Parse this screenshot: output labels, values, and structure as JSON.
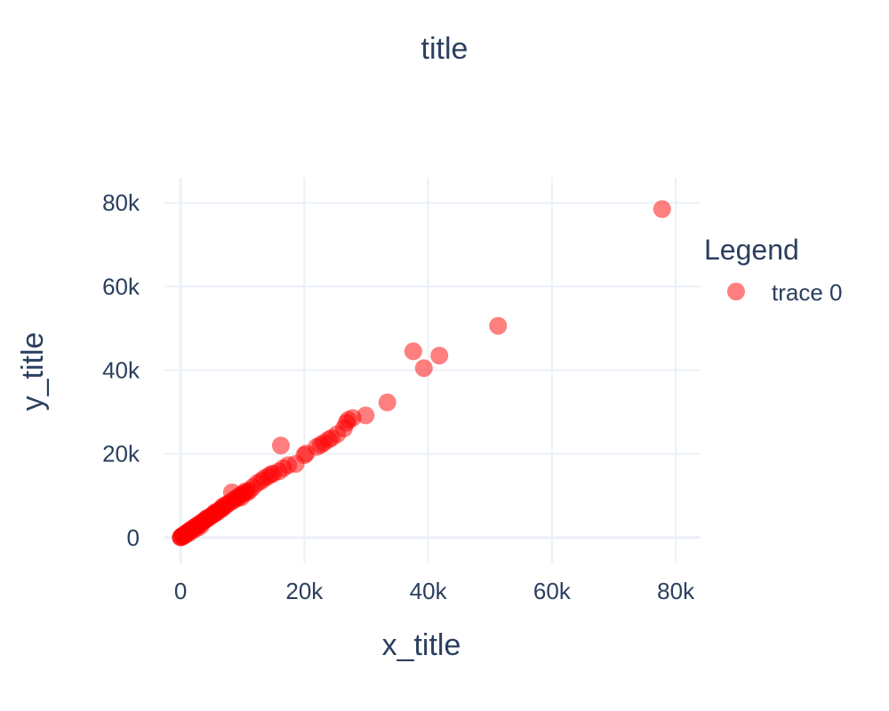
{
  "chart_data": {
    "type": "scatter",
    "title": "title",
    "xlabel": "x_title",
    "ylabel": "y_title",
    "xlim": [
      -2600,
      84000
    ],
    "ylim": [
      -6200,
      86000
    ],
    "xticks": [
      0,
      20000,
      40000,
      60000,
      80000
    ],
    "xtick_labels": [
      "0",
      "20k",
      "40k",
      "60k",
      "80k"
    ],
    "yticks": [
      0,
      20000,
      40000,
      60000,
      80000
    ],
    "ytick_labels": [
      "0",
      "20k",
      "40k",
      "60k",
      "80k"
    ],
    "grid": true,
    "legend": {
      "title": "Legend",
      "placement": "right"
    },
    "marker_color": "#ff0000",
    "marker_opacity": 0.5,
    "grid_color": "#ebf0f8",
    "text_color": "#2a3f5f",
    "series": [
      {
        "name": "trace 0",
        "points": [
          [
            77800,
            78500
          ],
          [
            51300,
            50600
          ],
          [
            41800,
            43500
          ],
          [
            39300,
            40500
          ],
          [
            37600,
            44500
          ],
          [
            33400,
            32300
          ],
          [
            29900,
            29200
          ],
          [
            27800,
            28600
          ],
          [
            27100,
            28100
          ],
          [
            26800,
            27400
          ],
          [
            26400,
            26100
          ],
          [
            25300,
            24700
          ],
          [
            23900,
            23400
          ],
          [
            23100,
            22600
          ],
          [
            22600,
            22100
          ],
          [
            22000,
            21700
          ],
          [
            20300,
            20100
          ],
          [
            20000,
            19700
          ],
          [
            18600,
            17600
          ],
          [
            17400,
            17300
          ],
          [
            16600,
            16600
          ],
          [
            16200,
            22000
          ],
          [
            15900,
            15800
          ],
          [
            14600,
            15100
          ],
          [
            14100,
            14600
          ],
          [
            13500,
            14100
          ],
          [
            13000,
            13500
          ],
          [
            11700,
            12100
          ],
          [
            11200,
            11300
          ],
          [
            10800,
            10800
          ],
          [
            10300,
            10600
          ],
          [
            9900,
            10300
          ],
          [
            9500,
            10000
          ],
          [
            9200,
            9400
          ],
          [
            8800,
            9300
          ],
          [
            8500,
            8800
          ],
          [
            8300,
            10800
          ],
          [
            8000,
            8400
          ],
          [
            7600,
            8000
          ],
          [
            7300,
            7800
          ],
          [
            7000,
            7300
          ],
          [
            6700,
            6900
          ],
          [
            6400,
            6700
          ],
          [
            6100,
            6300
          ],
          [
            5800,
            6000
          ],
          [
            5500,
            5700
          ],
          [
            5200,
            5400
          ],
          [
            4900,
            5100
          ],
          [
            4600,
            4800
          ],
          [
            4300,
            4500
          ],
          [
            4000,
            4200
          ],
          [
            3700,
            3900
          ],
          [
            3400,
            3600
          ],
          [
            3100,
            3300
          ],
          [
            2800,
            3000
          ],
          [
            2500,
            2700
          ],
          [
            2200,
            2400
          ],
          [
            1900,
            2100
          ],
          [
            1600,
            1800
          ],
          [
            1300,
            1500
          ],
          [
            1100,
            1200
          ],
          [
            900,
            1000
          ],
          [
            700,
            800
          ],
          [
            500,
            600
          ],
          [
            300,
            400
          ],
          [
            150,
            200
          ],
          [
            50,
            80
          ],
          [
            0,
            0
          ],
          [
            400,
            250
          ],
          [
            900,
            700
          ],
          [
            1500,
            1200
          ],
          [
            2100,
            1800
          ],
          [
            2700,
            2300
          ],
          [
            3300,
            2900
          ],
          [
            4200,
            4600
          ],
          [
            5600,
            6100
          ],
          [
            6800,
            7400
          ],
          [
            9800,
            9600
          ],
          [
            10500,
            11100
          ],
          [
            12400,
            13000
          ],
          [
            15000,
            15300
          ],
          [
            24400,
            23800
          ]
        ]
      }
    ]
  }
}
